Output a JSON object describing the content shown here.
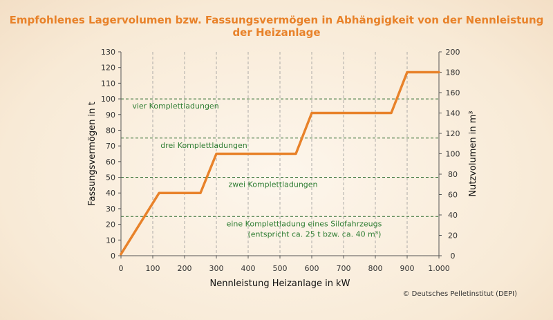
{
  "title": "Empfohlenes Lagervolumen bzw. Fassungsvermögen in Abhängigkeit von der Nennleistung der Heizanlage",
  "credit": "© Deutsches Pelletinstitut (DEPI)",
  "colors": {
    "title": "#e8822a",
    "line": "#e8822a",
    "annotation": "#2e7d32",
    "threshold": "#2e6b2e",
    "grid": "#999999"
  },
  "chart_data": {
    "type": "line",
    "title": "Empfohlenes Lagervolumen bzw. Fassungsvermögen in Abhängigkeit von der Nennleistung der Heizanlage",
    "xlabel": "Nennleistung Heizanlage in kW",
    "ylabel": "Fassungsvermögen in t",
    "y2label": "Nutzvolumen in m³",
    "xlim": [
      0,
      1000
    ],
    "ylim": [
      0,
      130
    ],
    "y2lim": [
      0,
      200
    ],
    "x_ticks": [
      "0",
      "100",
      "200",
      "300",
      "400",
      "500",
      "600",
      "700",
      "800",
      "900",
      "1.000"
    ],
    "y_ticks": [
      "0",
      "10",
      "20",
      "30",
      "40",
      "50",
      "60",
      "70",
      "80",
      "90",
      "100",
      "110",
      "120",
      "130"
    ],
    "y2_ticks": [
      "0",
      "20",
      "40",
      "60",
      "80",
      "100",
      "120",
      "140",
      "160",
      "180",
      "200"
    ],
    "grid": "vertical dashed",
    "series": [
      {
        "x": [
          0,
          120,
          250,
          300,
          550,
          600,
          850,
          900,
          1000
        ],
        "y": [
          1,
          40,
          40,
          65,
          65,
          91,
          91,
          117,
          117
        ]
      }
    ],
    "thresholds": [
      {
        "y": 25,
        "label": "eine Komplettladung eines Silofahrzeugs",
        "label2": "(entspricht ca. 25 t bzw. ca. 40 m³)"
      },
      {
        "y": 50,
        "label": "zwei Komplettladungen"
      },
      {
        "y": 75,
        "label": "drei Komplettladungen"
      },
      {
        "y": 100,
        "label": "vier Komplettladungen"
      }
    ]
  }
}
